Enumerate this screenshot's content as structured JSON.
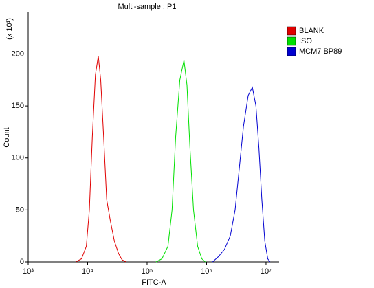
{
  "chart_data": {
    "type": "line",
    "title": "Multi-sample : P1",
    "x_label": "FITC-A",
    "y_label": "Count",
    "y_scale_label": "(x 10¹)",
    "x_scale": "log",
    "xlim": [
      1000,
      16600000
    ],
    "ylim": [
      0,
      240
    ],
    "xticks": [
      {
        "value": 1000,
        "label": "10³"
      },
      {
        "value": 10000,
        "label": "10⁴"
      },
      {
        "value": 100000,
        "label": "10⁵"
      },
      {
        "value": 1000000,
        "label": "10⁶"
      },
      {
        "value": 10000000,
        "label": "10⁷"
      }
    ],
    "yticks": [
      0,
      50,
      100,
      150,
      200
    ],
    "legend": "top-right outside",
    "series": [
      {
        "name": "BLANK",
        "color": "#e00000",
        "x": [
          6300,
          7900,
          9500,
          10700,
          12000,
          13500,
          15100,
          16600,
          18600,
          20900,
          24000,
          28200,
          33100,
          38000,
          44700
        ],
        "values": [
          0,
          3,
          15,
          50,
          120,
          180,
          198,
          175,
          120,
          60,
          40,
          20,
          8,
          2,
          0
        ]
      },
      {
        "name": "ISO",
        "color": "#00e000",
        "x": [
          141000,
          178000,
          224000,
          263000,
          302000,
          355000,
          417000,
          468000,
          525000,
          603000,
          708000,
          832000,
          955000
        ],
        "values": [
          0,
          3,
          15,
          50,
          120,
          175,
          194,
          170,
          110,
          50,
          15,
          3,
          0
        ]
      },
      {
        "name": "MCM7 BP89",
        "color": "#0000d0",
        "x": [
          1260000,
          1580000,
          2000000,
          2510000,
          3020000,
          3550000,
          4170000,
          5010000,
          5890000,
          6760000,
          7590000,
          8510000,
          9550000,
          10700000,
          11700000
        ],
        "values": [
          0,
          5,
          12,
          25,
          50,
          90,
          130,
          160,
          168,
          150,
          110,
          60,
          20,
          3,
          0
        ]
      }
    ]
  }
}
